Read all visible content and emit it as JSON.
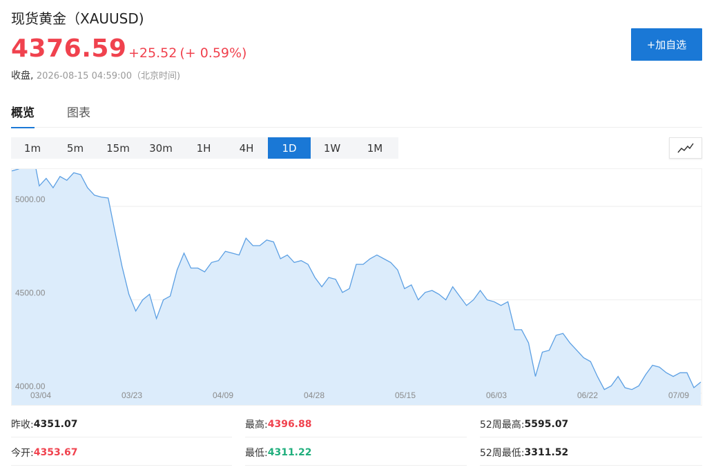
{
  "header": {
    "title": "现货黄金（XAUUSD)",
    "price": "4376.59",
    "change": "+25.52",
    "change_pct": "(+ 0.59%)",
    "close_label": "收盘,",
    "close_time": "2026-08-15 04:59:00（北京时间)",
    "add_button": "+加自选",
    "up_color": "#f0424e",
    "accent_color": "#1a78d6"
  },
  "tabs": [
    {
      "label": "概览",
      "active": true
    },
    {
      "label": "图表",
      "active": false
    }
  ],
  "periods": [
    {
      "label": "1m",
      "active": false
    },
    {
      "label": "5m",
      "active": false
    },
    {
      "label": "15m",
      "active": false
    },
    {
      "label": "30m",
      "active": false
    },
    {
      "label": "1H",
      "active": false
    },
    {
      "label": "4H",
      "active": false
    },
    {
      "label": "1D",
      "active": true
    },
    {
      "label": "1W",
      "active": false
    },
    {
      "label": "1M",
      "active": false
    }
  ],
  "chart_type_icon": "line-chart-icon",
  "chart_data": {
    "type": "area",
    "ylim": [
      4000,
      5200
    ],
    "yticks": [
      "5000.00",
      "4500.00",
      "4000.00"
    ],
    "ytick_values": [
      5000,
      4500,
      4000
    ],
    "xticks": [
      "03/04",
      "03/23",
      "04/09",
      "04/28",
      "05/15",
      "06/03",
      "06/22",
      "07/09"
    ],
    "line_color": "#5b9fe3",
    "fill_color": "#dcecfb",
    "values": [
      5190,
      5200,
      5270,
      5300,
      5110,
      5150,
      5100,
      5160,
      5140,
      5180,
      5170,
      5100,
      5060,
      5050,
      5045,
      4860,
      4680,
      4530,
      4440,
      4500,
      4530,
      4400,
      4500,
      4520,
      4660,
      4750,
      4670,
      4670,
      4650,
      4700,
      4710,
      4760,
      4750,
      4740,
      4830,
      4790,
      4790,
      4820,
      4810,
      4720,
      4740,
      4700,
      4710,
      4690,
      4620,
      4570,
      4620,
      4610,
      4540,
      4560,
      4690,
      4690,
      4720,
      4740,
      4720,
      4700,
      4660,
      4560,
      4580,
      4500,
      4540,
      4550,
      4530,
      4500,
      4570,
      4520,
      4470,
      4500,
      4550,
      4500,
      4490,
      4470,
      4490,
      4340,
      4340,
      4270,
      4090,
      4220,
      4230,
      4310,
      4320,
      4270,
      4230,
      4190,
      4170,
      4090,
      4020,
      4040,
      4090,
      4030,
      4020,
      4040,
      4100,
      4150,
      4140,
      4110,
      4090,
      4110,
      4110,
      4030,
      4060
    ]
  },
  "stats": {
    "prev_close_label": "昨收:",
    "prev_close": "4351.07",
    "open_label": "今开:",
    "open": "4353.67",
    "high_label": "最高:",
    "high": "4396.88",
    "low_label": "最低:",
    "low": "4311.22",
    "wk52_high_label": "52周最高:",
    "wk52_high": "5595.07",
    "wk52_low_label": "52周最低:",
    "wk52_low": "3311.52",
    "down_color": "#1fae7c"
  }
}
